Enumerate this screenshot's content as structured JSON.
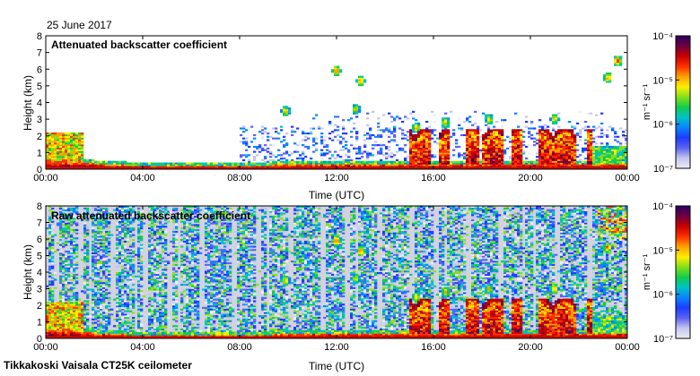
{
  "date_label": "25 June 2017",
  "footer": "Tikkakoski Vaisala CT25K ceilometer",
  "colorbar_unit": "m⁻¹ sr⁻¹",
  "colorbar_ticks": [
    "10⁻⁴",
    "10⁻⁵",
    "10⁻⁶",
    "10⁻⁷"
  ],
  "colorbar_tick_values": [
    -4,
    -5,
    -6,
    -7
  ],
  "colors": {
    "background": "#ffffff",
    "plot_background": "#ffffff",
    "raw_noise_background": "#d2d3de",
    "colormap": [
      "#ececf6",
      "#c4c6ee",
      "#5a64f0",
      "#1f3cff",
      "#0a84ff",
      "#00c2c8",
      "#12cc4a",
      "#84e01a",
      "#ffee00",
      "#ffa000",
      "#ff3000",
      "#c80000",
      "#6e0040",
      "#2a0060"
    ]
  },
  "chart_data": [
    {
      "type": "heatmap",
      "title": "Attenuated backscatter coefficient",
      "xlabel": "Time (UTC)",
      "ylabel": "Height (km)",
      "x_ticks": [
        "00:00",
        "04:00",
        "08:00",
        "12:00",
        "16:00",
        "20:00",
        "00:00"
      ],
      "x_range_hours": [
        0,
        24
      ],
      "y_ticks": [
        0,
        1,
        2,
        3,
        4,
        5,
        6,
        7,
        8
      ],
      "ylim": [
        0,
        8
      ],
      "color_scale": "log",
      "color_range_log10": [
        -7,
        -4
      ],
      "features": {
        "boundary_layer": [
          {
            "t": 0,
            "h": 0.5
          },
          {
            "t": 1,
            "h": 0.5
          },
          {
            "t": 2,
            "h": 0.35
          },
          {
            "t": 4,
            "h": 0.2
          },
          {
            "t": 8,
            "h": 0.2
          },
          {
            "t": 12,
            "h": 0.35
          },
          {
            "t": 16,
            "h": 0.3
          },
          {
            "t": 20,
            "h": 0.35
          },
          {
            "t": 24,
            "h": 0.35
          }
        ],
        "cloud_clusters": [
          {
            "t": 0.3,
            "h": 1.2,
            "intensity": -5.2
          },
          {
            "t": 9.9,
            "h": 3.5,
            "intensity": -4.8
          },
          {
            "t": 12.0,
            "h": 5.9,
            "intensity": -4.6
          },
          {
            "t": 13.0,
            "h": 5.3,
            "intensity": -4.7
          },
          {
            "t": 12.8,
            "h": 3.6,
            "intensity": -4.9
          },
          {
            "t": 15.3,
            "h": 2.5,
            "intensity": -4.8
          },
          {
            "t": 16.5,
            "h": 2.8,
            "intensity": -4.8
          },
          {
            "t": 18.3,
            "h": 3.0,
            "intensity": -4.9
          },
          {
            "t": 21.0,
            "h": 3.0,
            "intensity": -4.8
          },
          {
            "t": 23.2,
            "h": 5.5,
            "intensity": -4.7
          },
          {
            "t": 23.6,
            "h": 6.5,
            "intensity": -4.6
          }
        ]
      }
    },
    {
      "type": "heatmap",
      "title": "Raw attenuated backscatter coefficient",
      "xlabel": "Time (UTC)",
      "ylabel": "Height (km)",
      "x_ticks": [
        "00:00",
        "04:00",
        "08:00",
        "12:00",
        "16:00",
        "20:00",
        "00:00"
      ],
      "x_range_hours": [
        0,
        24
      ],
      "y_ticks": [
        0,
        1,
        2,
        3,
        4,
        5,
        6,
        7,
        8
      ],
      "ylim": [
        0,
        8
      ],
      "color_scale": "log",
      "color_range_log10": [
        -7,
        -4
      ]
    }
  ]
}
